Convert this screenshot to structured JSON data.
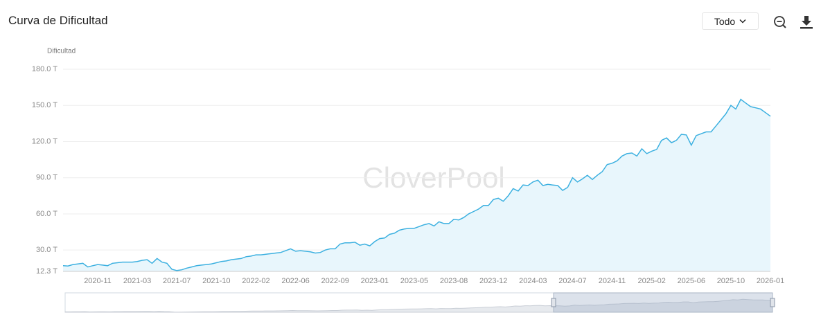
{
  "header": {
    "title": "Curva de Dificultad",
    "range_select": "Todo"
  },
  "chart_data": {
    "type": "line",
    "area": true,
    "color": "#3bb0e0",
    "area_color": "#e8f6fc",
    "y_axis_label": "Dificultad",
    "watermark": "CloverPool",
    "grid": true,
    "ylim": [
      12.3,
      180
    ],
    "yticks": [
      {
        "value": 12.3,
        "label": "12.3 T"
      },
      {
        "value": 30,
        "label": "30.0 T"
      },
      {
        "value": 60,
        "label": "60.0 T"
      },
      {
        "value": 90,
        "label": "90.0 T"
      },
      {
        "value": 120,
        "label": "120.0 T"
      },
      {
        "value": 150,
        "label": "150.0 T"
      },
      {
        "value": 180,
        "label": "180.0 T"
      }
    ],
    "categories": [
      null,
      null,
      null,
      null,
      null,
      null,
      null,
      "2020-11",
      null,
      null,
      null,
      null,
      null,
      null,
      null,
      "2021-03",
      null,
      null,
      null,
      null,
      null,
      null,
      null,
      "2021-07",
      null,
      null,
      null,
      null,
      null,
      null,
      null,
      "2021-10",
      null,
      null,
      null,
      null,
      null,
      null,
      null,
      "2022-02",
      null,
      null,
      null,
      null,
      null,
      null,
      null,
      "2022-06",
      null,
      null,
      null,
      null,
      null,
      null,
      null,
      "2022-09",
      null,
      null,
      null,
      null,
      null,
      null,
      null,
      "2023-01",
      null,
      null,
      null,
      null,
      null,
      null,
      null,
      "2023-05",
      null,
      null,
      null,
      null,
      null,
      null,
      null,
      "2023-08",
      null,
      null,
      null,
      null,
      null,
      null,
      null,
      "2023-12",
      null,
      null,
      null,
      null,
      null,
      null,
      null,
      "2024-03",
      null,
      null,
      null,
      null,
      null,
      null,
      null,
      "2024-07",
      null,
      null,
      null,
      null,
      null,
      null,
      null,
      "2024-11",
      null,
      null,
      null,
      null,
      null,
      null,
      null,
      "2025-02",
      null,
      null,
      null,
      null,
      null,
      null,
      null,
      "2025-06",
      null,
      null,
      null,
      null,
      null,
      null,
      null,
      "2025-10",
      null,
      null,
      null,
      null,
      null,
      null,
      null,
      "2026-01"
    ],
    "values": [
      17,
      16.8,
      18,
      18.5,
      19,
      16,
      17,
      18,
      17.5,
      17,
      19,
      19.5,
      20,
      20,
      20,
      20.5,
      21.5,
      22,
      19,
      23,
      20,
      19,
      14,
      13,
      13.6,
      15,
      16,
      17,
      17.5,
      18,
      18.5,
      19.5,
      20.5,
      21,
      22,
      22.5,
      23,
      24.5,
      25,
      26,
      26,
      26.5,
      27,
      27.5,
      28,
      29.5,
      31,
      29,
      29.5,
      29,
      28.5,
      27.5,
      28,
      30,
      31,
      31,
      35,
      36,
      36,
      36.5,
      34,
      35,
      33.5,
      37,
      39.5,
      40,
      43,
      44,
      46.5,
      47.5,
      48,
      48,
      49.5,
      51,
      52,
      50,
      53.5,
      52,
      52,
      55.5,
      55,
      57,
      60,
      62,
      64,
      67,
      67,
      72,
      73,
      70.5,
      75,
      81,
      79,
      84,
      83.5,
      86.5,
      88,
      83.5,
      84.5,
      84,
      83.5,
      79.5,
      82,
      90,
      86.5,
      89,
      92,
      88.5,
      92,
      95,
      101,
      102,
      104,
      108,
      110,
      110.5,
      108,
      114,
      110,
      112,
      113.5,
      121,
      123,
      119,
      121,
      126,
      125.5,
      117,
      125,
      126.5,
      128,
      128,
      133,
      138,
      143,
      150,
      147,
      155,
      152,
      149,
      148,
      147,
      144,
      141
    ]
  }
}
